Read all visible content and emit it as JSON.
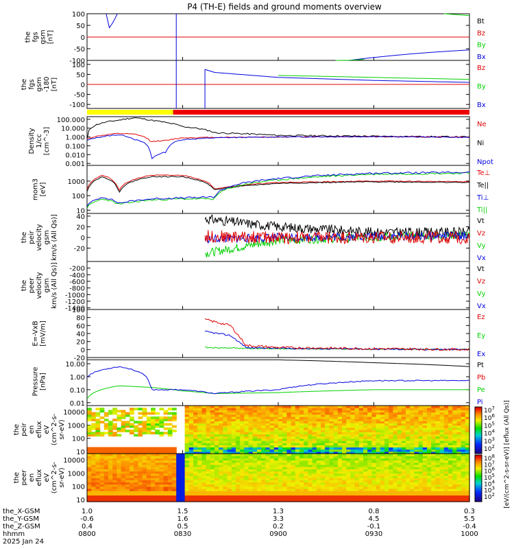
{
  "title": "P4 (TH-E) fields and ground moments overview",
  "colors": {
    "black": "#000000",
    "red": "#e00000",
    "green": "#00d000",
    "blue": "#0000e0",
    "yellow": "#ffff00",
    "bar_red": "#ee0000"
  },
  "panels": [
    {
      "id": "fgs",
      "ylabel": [
        "the",
        "fgs",
        "gsm",
        "[nT]"
      ],
      "ylim": [
        -100,
        100
      ],
      "log": false,
      "yticks": [
        {
          "v": 100,
          "t": "100"
        },
        {
          "v": 50,
          "t": "50"
        },
        {
          "v": 0,
          "t": "0"
        },
        {
          "v": -50,
          "t": "-50"
        },
        {
          "v": -100,
          "t": "-100"
        }
      ],
      "legend": [
        {
          "t": "Bt",
          "c": "black"
        },
        {
          "t": "Bz",
          "c": "red"
        },
        {
          "t": "By",
          "c": "green"
        },
        {
          "t": "Bx",
          "c": "blue"
        }
      ]
    },
    {
      "id": "fgs2",
      "ylabel": [
        "the",
        "fgs",
        "gsm",
        "-180",
        "[nT]"
      ],
      "ylim": [
        -120,
        120
      ],
      "log": false,
      "yticks": [
        {
          "v": 100,
          "t": "100"
        },
        {
          "v": 50,
          "t": "50"
        },
        {
          "v": 0,
          "t": "0"
        },
        {
          "v": -50,
          "t": "-50"
        },
        {
          "v": -100,
          "t": "-100"
        }
      ],
      "legend": [
        {
          "t": "Bz",
          "c": "red"
        },
        {
          "t": "By",
          "c": "green"
        },
        {
          "t": "Bx",
          "c": "blue"
        }
      ]
    },
    {
      "id": "density",
      "ylabel": [
        "Density",
        "1/cc",
        "[cm^-3]"
      ],
      "ylim": [
        0.0006,
        200
      ],
      "log": true,
      "yticks": [
        {
          "v": 100,
          "t": "100.000"
        },
        {
          "v": 10,
          "t": "10.000"
        },
        {
          "v": 1,
          "t": "1.000"
        },
        {
          "v": 0.1,
          "t": "0.100"
        },
        {
          "v": 0.01,
          "t": "0.010"
        },
        {
          "v": 0.001,
          "t": "0.001"
        }
      ],
      "legend": [
        {
          "t": "Ne",
          "c": "red"
        },
        {
          "t": "Ni",
          "c": "black"
        },
        {
          "t": "Npot",
          "c": "blue"
        }
      ]
    },
    {
      "id": "temp",
      "ylabel": [
        "mom3",
        "[eV]"
      ],
      "ylim": [
        6,
        12000
      ],
      "log": true,
      "yticks": [
        {
          "v": 1000,
          "t": "1000"
        },
        {
          "v": 100,
          "t": "100"
        },
        {
          "v": 10,
          "t": "10"
        }
      ],
      "legend": [
        {
          "t": "Te⊥",
          "c": "red"
        },
        {
          "t": "Te||",
          "c": "black"
        },
        {
          "t": "Ti⊥",
          "c": "blue"
        },
        {
          "t": "Ti||",
          "c": "green"
        }
      ]
    },
    {
      "id": "peir_vel",
      "ylabel": [
        "the",
        "peir",
        "velocity",
        "gsm",
        "km/s (All Qs)]"
      ],
      "ylim": [
        -45,
        45
      ],
      "log": false,
      "yticks": [
        {
          "v": 40,
          "t": "40"
        },
        {
          "v": 20,
          "t": "20"
        },
        {
          "v": 0,
          "t": "0"
        },
        {
          "v": -20,
          "t": "-20"
        }
      ],
      "legend": [
        {
          "t": "Vt",
          "c": "black"
        },
        {
          "t": "Vz",
          "c": "red"
        },
        {
          "t": "Vy",
          "c": "green"
        },
        {
          "t": "Vx",
          "c": "blue"
        }
      ]
    },
    {
      "id": "peer_vel",
      "ylabel": [
        "the",
        "peer",
        "velocity",
        "gsm",
        "km/s (All Qs)]"
      ],
      "ylim": [
        -1450,
        0
      ],
      "log": false,
      "yticks": [
        {
          "v": -200,
          "t": "-200"
        },
        {
          "v": -400,
          "t": "-400"
        },
        {
          "v": -600,
          "t": "-600"
        },
        {
          "v": -800,
          "t": "-800"
        },
        {
          "v": -1000,
          "t": "-1000"
        },
        {
          "v": -1200,
          "t": "-1200"
        },
        {
          "v": -1400,
          "t": "-1400"
        }
      ],
      "legend": [
        {
          "t": "Vt",
          "c": "black"
        },
        {
          "t": "Vz",
          "c": "red"
        },
        {
          "t": "Vy",
          "c": "green"
        },
        {
          "t": "Vx",
          "c": "blue"
        }
      ]
    },
    {
      "id": "efield",
      "ylabel": [
        "E=-VxB",
        "[mV/m]"
      ],
      "ylim": [
        -20,
        100
      ],
      "log": false,
      "yticks": [
        {
          "v": 100,
          "t": "100"
        },
        {
          "v": 80,
          "t": "80"
        },
        {
          "v": 60,
          "t": "60"
        },
        {
          "v": 40,
          "t": "40"
        },
        {
          "v": 20,
          "t": "20"
        },
        {
          "v": 0,
          "t": "0"
        },
        {
          "v": -20,
          "t": "-20"
        }
      ],
      "legend": [
        {
          "t": "Ez",
          "c": "red"
        },
        {
          "t": "Ey",
          "c": "green"
        },
        {
          "t": "Ex",
          "c": "blue"
        }
      ]
    },
    {
      "id": "pressure",
      "ylabel": [
        "Pressure",
        "[nPa]"
      ],
      "ylim": [
        0.006,
        30
      ],
      "log": true,
      "yticks": [
        {
          "v": 10,
          "t": "10.00"
        },
        {
          "v": 1,
          "t": "1.00"
        },
        {
          "v": 0.1,
          "t": "0.10"
        },
        {
          "v": 0.01,
          "t": "0.01"
        }
      ],
      "legend": [
        {
          "t": "Pt",
          "c": "black"
        },
        {
          "t": "Pb",
          "c": "red"
        },
        {
          "t": "Pe",
          "c": "green"
        },
        {
          "t": "Pi",
          "c": "blue"
        }
      ]
    },
    {
      "id": "peir_eflux",
      "ylabel": [
        "the",
        "peir",
        "en",
        "eflux",
        "eV",
        "(cm^2-s-",
        "sr-eV)"
      ],
      "ylim": [
        7,
        30000
      ],
      "log": true,
      "yticks": [
        {
          "v": 10000,
          "t": "10000"
        },
        {
          "v": 1000,
          "t": "1000"
        },
        {
          "v": 100,
          "t": "100"
        },
        {
          "v": 10,
          "t": "10"
        }
      ],
      "legend": []
    },
    {
      "id": "peer_eflux",
      "ylabel": [
        "the",
        "peer",
        "en",
        "eflux",
        "eV",
        "(cm^2-s-",
        "sr-eV)"
      ],
      "ylim": [
        7,
        30000
      ],
      "log": true,
      "yticks": [
        {
          "v": 10000,
          "t": "10000"
        },
        {
          "v": 1000,
          "t": "1000"
        },
        {
          "v": 100,
          "t": "100"
        },
        {
          "v": 10,
          "t": "10"
        }
      ],
      "legend": []
    }
  ],
  "colorbars": [
    {
      "ticks": [
        "10^7",
        "10^6",
        "10^5",
        "10^4",
        "10^3",
        "10^2"
      ]
    },
    {
      "ticks": [
        "10^8",
        "10^7",
        "10^6",
        "10^5",
        "10^4",
        "10^3",
        "10^2"
      ]
    }
  ],
  "colorbar_label": "[eV/(cm^2-s-sr-eV)]  [eflux (All Qs)]",
  "xaxis": {
    "rows": [
      {
        "label": "the_X-GSM",
        "values": [
          "1.0",
          "1.5",
          "1.3",
          "0.8",
          "0.3"
        ]
      },
      {
        "label": "the_Y-GSM",
        "values": [
          "-0.6",
          "1.6",
          "3.3",
          "4.5",
          "5.5"
        ]
      },
      {
        "label": "the_Z-GSM",
        "values": [
          "0.4",
          "0.5",
          "0.2",
          "-0.1",
          "-0.4"
        ]
      },
      {
        "label": "hhmm",
        "values": [
          "0800",
          "0830",
          "0900",
          "0930",
          "1000"
        ]
      }
    ],
    "date": "2025 Jan 24"
  },
  "chart_data": [
    {
      "type": "line",
      "panel": "fgs",
      "x_minutes": [
        0,
        10,
        20,
        30,
        40,
        60,
        90,
        120
      ],
      "series": [
        {
          "name": "Bx",
          "values": [
            60,
            90,
            0,
            0,
            0,
            -100,
            -75,
            -55
          ]
        },
        {
          "name": "By",
          "values": [
            0,
            0,
            0,
            0,
            0,
            -90,
            20,
            95
          ]
        },
        {
          "name": "Bz",
          "values": [
            0,
            0,
            0,
            0,
            0,
            0,
            0,
            0
          ]
        }
      ]
    },
    {
      "type": "line",
      "panel": "fgs2",
      "x_minutes": [
        37,
        40,
        60,
        90,
        120
      ],
      "series": [
        {
          "name": "Bx",
          "values": [
            75,
            60,
            35,
            20,
            10
          ]
        },
        {
          "name": "By",
          "values": [
            70,
            58,
            45,
            35,
            25
          ]
        },
        {
          "name": "Bz",
          "values": [
            0,
            0,
            0,
            0,
            0
          ]
        }
      ]
    },
    {
      "type": "line",
      "panel": "density",
      "x_minutes": [
        0,
        10,
        15,
        20,
        25,
        30,
        40,
        60,
        90,
        120
      ],
      "series": [
        {
          "name": "Ni",
          "values": [
            0.5,
            80,
            150,
            80,
            40,
            15,
            3,
            1.5,
            1.2,
            1.0
          ]
        },
        {
          "name": "Ne",
          "values": [
            0.6,
            2.5,
            2.0,
            0.3,
            0.4,
            0.8,
            0.9,
            1.0,
            1.1,
            1.0
          ]
        },
        {
          "name": "Npot",
          "values": [
            0.4,
            1.8,
            0.5,
            0.002,
            0.02,
            0.5,
            0.8,
            1.0,
            1.1,
            0.9
          ]
        }
      ]
    },
    {
      "type": "line",
      "panel": "temp",
      "x_minutes": [
        0,
        5,
        10,
        20,
        30,
        40,
        60,
        90,
        120
      ],
      "series": [
        {
          "name": "Te⊥",
          "values": [
            300,
            2500,
            200,
            2500,
            2500,
            300,
            800,
            1000,
            900
          ]
        },
        {
          "name": "Te||",
          "values": [
            200,
            2000,
            150,
            2000,
            2000,
            250,
            700,
            900,
            800
          ]
        },
        {
          "name": "Ti⊥",
          "values": [
            20,
            80,
            30,
            60,
            70,
            80,
            1500,
            3500,
            4000
          ]
        },
        {
          "name": "Ti||",
          "values": [
            15,
            60,
            25,
            50,
            60,
            60,
            1200,
            3000,
            3500
          ]
        }
      ]
    },
    {
      "type": "line",
      "panel": "peir_vel",
      "x_minutes": [
        37,
        60,
        90,
        120
      ],
      "series": [
        {
          "name": "Vt",
          "values": [
            35,
            20,
            10,
            10
          ]
        },
        {
          "name": "Vz",
          "values": [
            2,
            0,
            0,
            0
          ]
        },
        {
          "name": "Vy",
          "values": [
            -30,
            -5,
            0,
            5
          ]
        },
        {
          "name": "Vx",
          "values": [
            -3,
            0,
            2,
            3
          ]
        }
      ]
    },
    {
      "type": "line",
      "panel": "efield",
      "x_minutes": [
        37,
        45,
        50,
        60,
        90,
        120
      ],
      "series": [
        {
          "name": "Ez",
          "values": [
            75,
            60,
            10,
            5,
            2,
            0
          ]
        },
        {
          "name": "Ey",
          "values": [
            5,
            4,
            3,
            2,
            1,
            0
          ]
        },
        {
          "name": "Ex",
          "values": [
            45,
            35,
            5,
            3,
            1,
            0
          ]
        }
      ]
    },
    {
      "type": "line",
      "panel": "pressure",
      "x_minutes": [
        0,
        10,
        20,
        30,
        40,
        60,
        90,
        120
      ],
      "series": [
        {
          "name": "Pt",
          "values": [
            20,
            20,
            20,
            20,
            20,
            20,
            12,
            6
          ]
        },
        {
          "name": "Pi",
          "values": [
            1,
            6,
            0.1,
            0.1,
            0.05,
            0.1,
            0.5,
            0.5
          ]
        },
        {
          "name": "Pe",
          "values": [
            0.02,
            0.2,
            0.15,
            0.08,
            0.05,
            0.06,
            0.1,
            0.1
          ]
        }
      ]
    }
  ]
}
